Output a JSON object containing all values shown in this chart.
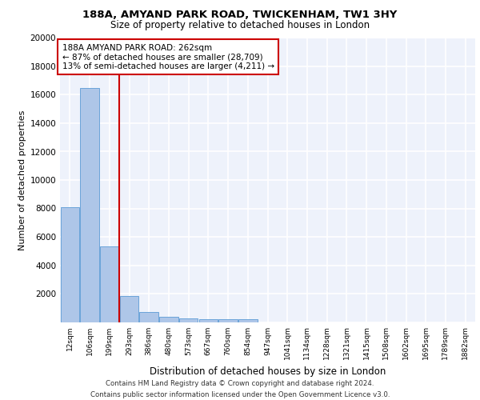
{
  "title1": "188A, AMYAND PARK ROAD, TWICKENHAM, TW1 3HY",
  "title2": "Size of property relative to detached houses in London",
  "xlabel": "Distribution of detached houses by size in London",
  "ylabel": "Number of detached properties",
  "categories": [
    "12sqm",
    "106sqm",
    "199sqm",
    "293sqm",
    "386sqm",
    "480sqm",
    "573sqm",
    "667sqm",
    "760sqm",
    "854sqm",
    "947sqm",
    "1041sqm",
    "1134sqm",
    "1228sqm",
    "1321sqm",
    "1415sqm",
    "1508sqm",
    "1602sqm",
    "1695sqm",
    "1789sqm",
    "1882sqm"
  ],
  "values": [
    8100,
    16500,
    5300,
    1850,
    700,
    350,
    270,
    220,
    200,
    175,
    0,
    0,
    0,
    0,
    0,
    0,
    0,
    0,
    0,
    0,
    0
  ],
  "bar_color": "#aec6e8",
  "bar_edge_color": "#5b9bd5",
  "annotation_text": "188A AMYAND PARK ROAD: 262sqm\n← 87% of detached houses are smaller (28,709)\n13% of semi-detached houses are larger (4,211) →",
  "vline_x": 2.5,
  "vline_color": "#cc0000",
  "annotation_box_color": "#cc0000",
  "background_color": "#eef2fb",
  "grid_color": "#ffffff",
  "footer_text": "Contains HM Land Registry data © Crown copyright and database right 2024.\nContains public sector information licensed under the Open Government Licence v3.0.",
  "ylim": [
    0,
    20000
  ],
  "yticks": [
    0,
    2000,
    4000,
    6000,
    8000,
    10000,
    12000,
    14000,
    16000,
    18000,
    20000
  ]
}
